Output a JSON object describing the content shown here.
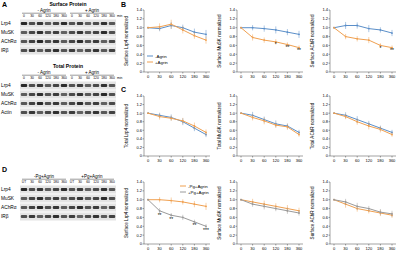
{
  "panel_labels": [
    "A",
    "B",
    "C",
    "D"
  ],
  "blots": [
    {
      "title": "Surface Protein",
      "groups": [
        "- Agrin",
        "+ Agrin"
      ],
      "times": [
        "0",
        "30",
        "60",
        "120",
        "180",
        "360"
      ],
      "time_unit": "min",
      "rows": [
        "Lrp4",
        "MuSK",
        "AChRα",
        "IRβ"
      ]
    },
    {
      "title": "Total Protein",
      "groups": [
        "- Agrin",
        "+ Agrin"
      ],
      "times": [
        "0",
        "30",
        "60",
        "120",
        "180",
        "360"
      ],
      "time_unit": "min",
      "rows": [
        "Lrp4",
        "MuSK",
        "AChRα",
        "Actin"
      ]
    },
    {
      "groups": [
        "-Pg+Agrin",
        "+Pg+Agrin"
      ],
      "times": [
        "UT",
        "30",
        "60",
        "120",
        "180",
        "360"
      ],
      "rows": [
        "Lrp4",
        "MuSK",
        "AChRα",
        "IRβ"
      ]
    }
  ],
  "chart_data": [
    {
      "type": "line",
      "y_label": "Surface Lrp4 normalized",
      "categories": [
        "0",
        "30",
        "60",
        "120",
        "180",
        "360"
      ],
      "ylim": [
        0,
        1.4
      ],
      "yticks": [
        0,
        0.2,
        0.4,
        0.6,
        0.8,
        {
          "value": 1,
          "label": "1.0"
        },
        1.2,
        1.4
      ],
      "legend": "lower left",
      "series": [
        {
          "name": "-Agrin",
          "color": "#5b8fc9",
          "values": [
            1.0,
            0.98,
            1.05,
            1.0,
            0.9,
            0.85
          ],
          "errors": [
            0,
            0.06,
            0.08,
            0.07,
            0.08,
            0.1
          ]
        },
        {
          "name": "+Agrin",
          "color": "#f0a050",
          "values": [
            1.0,
            1.02,
            1.08,
            0.95,
            0.82,
            0.72
          ],
          "errors": [
            0,
            0.08,
            0.1,
            0.08,
            0.07,
            0.08
          ]
        }
      ]
    },
    {
      "type": "line",
      "y_label": "Surface MuSK normalized",
      "categories": [
        "0",
        "30",
        "60",
        "120",
        "180",
        "360"
      ],
      "ylim": [
        0,
        1.4
      ],
      "yticks": [
        0,
        0.2,
        0.4,
        0.6,
        0.8,
        {
          "value": 1,
          "label": "1.0"
        },
        1.2,
        1.4
      ],
      "series": [
        {
          "color": "#5b8fc9",
          "values": [
            1.0,
            1.0,
            0.98,
            0.95,
            0.9,
            0.85
          ],
          "errors": [
            0,
            0.06,
            0.07,
            0.08,
            0.07,
            0.08
          ]
        },
        {
          "color": "#f0a050",
          "values": [
            1.0,
            0.78,
            0.72,
            0.68,
            0.62,
            0.55
          ],
          "errors": [
            0,
            0.07,
            0.06,
            0.06,
            0.05,
            0.05
          ]
        }
      ],
      "annotations": [
        {
          "category": "120",
          "y": 0.58,
          "text": "*"
        },
        {
          "category": "180",
          "y": 0.52,
          "text": "**"
        },
        {
          "category": "360",
          "y": 0.45,
          "text": "**"
        }
      ]
    },
    {
      "type": "line",
      "y_label": "Surface AChR normalized",
      "categories": [
        "0",
        "30",
        "60",
        "120",
        "180",
        "360"
      ],
      "ylim": [
        0,
        1.4
      ],
      "yticks": [
        0,
        0.2,
        0.4,
        0.6,
        0.8,
        {
          "value": 1,
          "label": "1.0"
        },
        1.2,
        1.4
      ],
      "series": [
        {
          "color": "#5b8fc9",
          "values": [
            1.0,
            1.05,
            1.05,
            0.98,
            0.95,
            0.88
          ],
          "errors": [
            0,
            0.08,
            0.07,
            0.08,
            0.06,
            0.07
          ]
        },
        {
          "color": "#f0a050",
          "values": [
            1.0,
            0.8,
            0.75,
            0.72,
            0.6,
            0.55
          ],
          "errors": [
            0,
            0.06,
            0.06,
            0.07,
            0.05,
            0.05
          ]
        }
      ],
      "annotations": [
        {
          "category": "180",
          "y": 0.5,
          "text": "*"
        },
        {
          "category": "360",
          "y": 0.45,
          "text": "**"
        }
      ]
    },
    {
      "type": "line",
      "y_label": "Total Lrp4 normalized",
      "categories": [
        "0",
        "30",
        "60",
        "120",
        "180",
        "360"
      ],
      "ylim": [
        0,
        1.4
      ],
      "yticks": [
        0,
        0.2,
        0.4,
        0.6,
        0.8,
        {
          "value": 1,
          "label": "1.0"
        },
        1.2,
        1.4
      ],
      "series": [
        {
          "color": "#5b8fc9",
          "values": [
            1.0,
            0.95,
            0.9,
            0.8,
            0.65,
            0.5
          ],
          "errors": [
            0,
            0.06,
            0.07,
            0.08,
            0.07,
            0.06
          ]
        },
        {
          "color": "#f0a050",
          "values": [
            1.0,
            0.92,
            0.88,
            0.82,
            0.7,
            0.55
          ],
          "errors": [
            0,
            0.07,
            0.06,
            0.07,
            0.08,
            0.07
          ]
        }
      ]
    },
    {
      "type": "line",
      "y_label": "Total MuSK normalized",
      "categories": [
        "0",
        "30",
        "60",
        "120",
        "180",
        "360"
      ],
      "ylim": [
        0,
        1.4
      ],
      "yticks": [
        0,
        0.2,
        0.4,
        0.6,
        0.8,
        {
          "value": 1,
          "label": "1.0"
        },
        1.2,
        1.4
      ],
      "series": [
        {
          "color": "#5b8fc9",
          "values": [
            1.0,
            0.95,
            0.85,
            0.75,
            0.7,
            0.55
          ],
          "errors": [
            0,
            0.08,
            0.07,
            0.08,
            0.06,
            0.06
          ]
        },
        {
          "color": "#f0a050",
          "values": [
            1.0,
            0.9,
            0.82,
            0.72,
            0.68,
            0.5
          ],
          "errors": [
            0,
            0.07,
            0.08,
            0.06,
            0.07,
            0.05
          ]
        }
      ]
    },
    {
      "type": "line",
      "y_label": "Total AChR normalized",
      "categories": [
        "0",
        "30",
        "60",
        "120",
        "180",
        "360"
      ],
      "ylim": [
        0,
        1.4
      ],
      "yticks": [
        0,
        0.2,
        0.4,
        0.6,
        0.8,
        {
          "value": 1,
          "label": "1.0"
        },
        1.2,
        1.4
      ],
      "series": [
        {
          "color": "#5b8fc9",
          "values": [
            1.0,
            0.95,
            0.85,
            0.75,
            0.65,
            0.55
          ],
          "errors": [
            0,
            0.07,
            0.08,
            0.07,
            0.06,
            0.06
          ]
        },
        {
          "color": "#f0a050",
          "values": [
            1.0,
            0.92,
            0.8,
            0.7,
            0.62,
            0.5
          ],
          "errors": [
            0,
            0.06,
            0.07,
            0.08,
            0.07,
            0.05
          ]
        }
      ]
    },
    {
      "type": "line",
      "y_label": "Surface Lrp4 normalized",
      "categories": [
        "0",
        "30",
        "60",
        "120",
        "180",
        "360"
      ],
      "ylim": [
        0,
        1.4
      ],
      "yticks": [
        0,
        0.2,
        0.4,
        0.6,
        0.8,
        {
          "value": 1,
          "label": "1.0"
        },
        1.2,
        1.4
      ],
      "legend": "upper right",
      "series": [
        {
          "name": "-Pg+Agrin",
          "color": "#f0a050",
          "values": [
            1.0,
            1.0,
            0.98,
            0.95,
            0.9,
            0.85
          ],
          "errors": [
            0,
            0.06,
            0.07,
            0.06,
            0.07,
            0.08
          ]
        },
        {
          "name": "+Pg+Agrin",
          "color": "#9a9a9a",
          "values": [
            1.0,
            0.75,
            0.65,
            0.6,
            0.5,
            0.4
          ],
          "errors": [
            0,
            0.06,
            0.05,
            0.06,
            0.05,
            0.05
          ]
        }
      ],
      "annotations": [
        {
          "category": "30",
          "y": 0.62,
          "text": "**"
        },
        {
          "category": "60",
          "y": 0.53,
          "text": "**"
        },
        {
          "category": "180",
          "y": 0.38,
          "text": "**"
        },
        {
          "category": "360",
          "y": 0.28,
          "text": "***"
        }
      ]
    },
    {
      "type": "line",
      "y_label": "Surface MuSK normalized",
      "categories": [
        "0",
        "30",
        "60",
        "120",
        "180",
        "360"
      ],
      "ylim": [
        0,
        1.4
      ],
      "yticks": [
        0,
        0.2,
        0.4,
        0.6,
        0.8,
        {
          "value": 1,
          "label": "1.0"
        },
        1.2,
        1.4
      ],
      "series": [
        {
          "color": "#f0a050",
          "values": [
            1.0,
            0.95,
            0.9,
            0.85,
            0.8,
            0.75
          ],
          "errors": [
            0,
            0.07,
            0.08,
            0.07,
            0.08,
            0.07
          ]
        },
        {
          "color": "#9a9a9a",
          "values": [
            1.0,
            0.9,
            0.85,
            0.8,
            0.75,
            0.7
          ],
          "errors": [
            0,
            0.06,
            0.07,
            0.06,
            0.07,
            0.06
          ]
        }
      ]
    },
    {
      "type": "line",
      "y_label": "Surface AChR normalized",
      "categories": [
        "0",
        "30",
        "60",
        "120",
        "180",
        "360"
      ],
      "ylim": [
        0,
        1.4
      ],
      "yticks": [
        0,
        0.2,
        0.4,
        0.6,
        0.8,
        {
          "value": 1,
          "label": "1.0"
        },
        1.2,
        1.4
      ],
      "series": [
        {
          "color": "#f0a050",
          "values": [
            1.0,
            0.9,
            0.8,
            0.75,
            0.7,
            0.65
          ],
          "errors": [
            0,
            0.08,
            0.07,
            0.06,
            0.07,
            0.06
          ]
        },
        {
          "color": "#9a9a9a",
          "values": [
            1.0,
            0.95,
            0.85,
            0.8,
            0.72,
            0.68
          ],
          "errors": [
            0,
            0.07,
            0.08,
            0.06,
            0.07,
            0.07
          ]
        }
      ]
    }
  ]
}
